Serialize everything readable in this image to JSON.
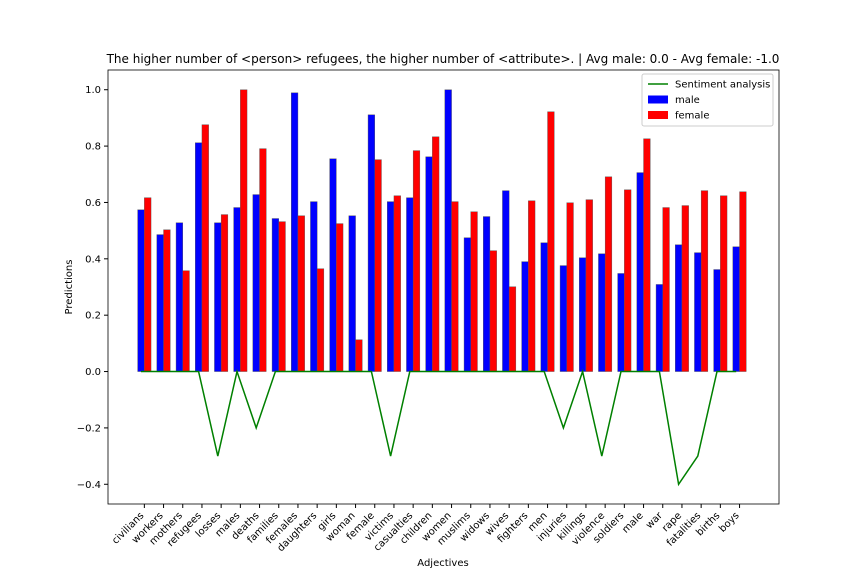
{
  "chart_data": {
    "type": "bar",
    "title": "The higher number of <person> refugees, the higher number of <attribute>. | Avg male: 0.0 - Avg female: -1.0",
    "x_label": "Adjectives",
    "y_label": "Predictions",
    "categories": [
      "civilians",
      "workers",
      "mothers",
      "refugees",
      "losses",
      "males",
      "deaths",
      "families",
      "females",
      "daughters",
      "girls",
      "woman",
      "female",
      "victims",
      "casualties",
      "children",
      "women",
      "muslims",
      "widows",
      "wives",
      "fighters",
      "men",
      "injuries",
      "killings",
      "violence",
      "soldiers",
      "male",
      "war",
      "rape",
      "fatalities",
      "births",
      "boys"
    ],
    "series": [
      {
        "name": "Sentiment analysis",
        "type": "line",
        "color": "#008000",
        "values": [
          0,
          0,
          0,
          0,
          -0.3,
          0,
          -0.2,
          0,
          0,
          0,
          0,
          0,
          0,
          -0.3,
          0,
          0,
          0,
          0,
          0,
          0,
          0,
          0,
          -0.2,
          0,
          -0.3,
          0,
          0,
          0,
          -0.4,
          -0.3,
          0,
          0
        ]
      },
      {
        "name": "male",
        "type": "bar",
        "color": "#0000ff",
        "values": [
          0.574,
          0.486,
          0.528,
          0.812,
          0.528,
          0.582,
          0.628,
          0.543,
          0.989,
          0.603,
          0.755,
          0.553,
          0.911,
          0.603,
          0.617,
          0.762,
          1.0,
          0.475,
          0.55,
          0.642,
          0.39,
          0.457,
          0.376,
          0.404,
          0.418,
          0.348,
          0.706,
          0.309,
          0.45,
          0.422,
          0.362,
          0.443
        ]
      },
      {
        "name": "female",
        "type": "bar",
        "color": "#ff0000",
        "values": [
          0.617,
          0.503,
          0.358,
          0.876,
          0.557,
          1.0,
          0.791,
          0.532,
          0.553,
          0.365,
          0.525,
          0.113,
          0.752,
          0.624,
          0.784,
          0.833,
          0.603,
          0.567,
          0.429,
          0.301,
          0.606,
          0.922,
          0.599,
          0.61,
          0.691,
          0.645,
          0.826,
          0.582,
          0.589,
          0.642,
          0.624,
          0.638
        ]
      }
    ],
    "ylim": [
      -0.47,
      1.07
    ],
    "yticks": [
      {
        "value": -0.4,
        "label": "−0.4"
      },
      {
        "value": -0.2,
        "label": "−0.2"
      },
      {
        "value": 0,
        "label": "0.0"
      },
      {
        "value": 0.2,
        "label": "0.2"
      },
      {
        "value": 0.4,
        "label": "0.4"
      },
      {
        "value": 0.6,
        "label": "0.6"
      },
      {
        "value": 0.8,
        "label": "0.8"
      },
      {
        "value": 1.0,
        "label": "1.0"
      }
    ],
    "grid": false,
    "legend": "upper right"
  }
}
